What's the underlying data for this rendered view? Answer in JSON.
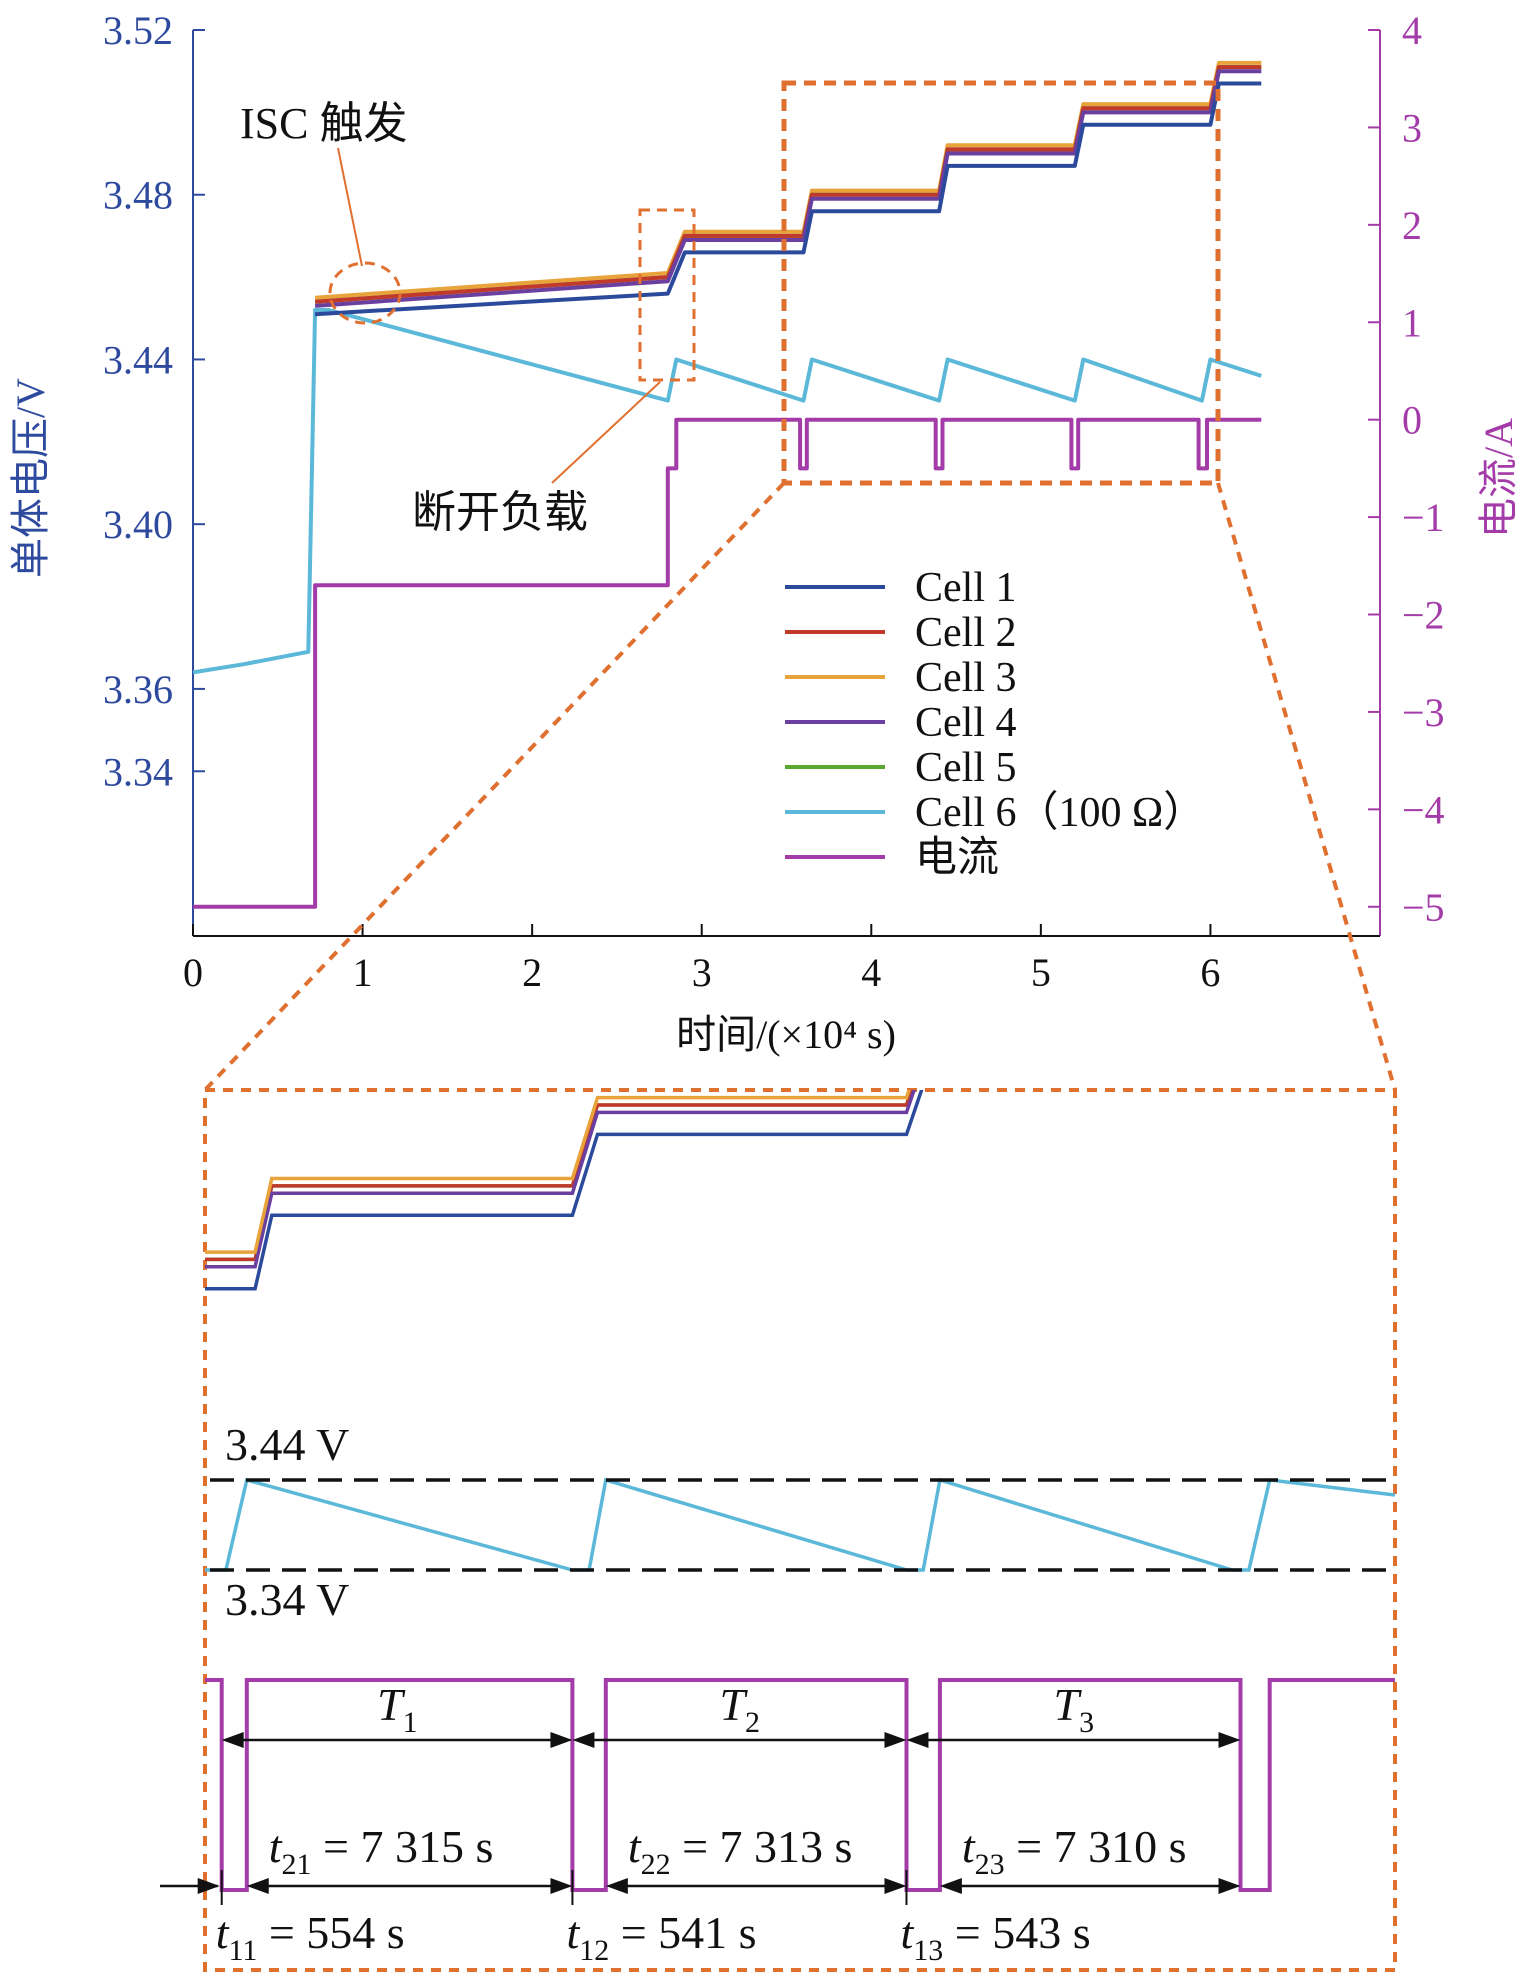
{
  "chart_data": {
    "type": "line",
    "xlabel": "时间/(×10⁴ s)",
    "ylabel_left": "单体电压/V",
    "ylabel_right": "电流/A",
    "xlim": [
      0,
      7
    ],
    "ylim_left": [
      3.3,
      3.52
    ],
    "ylim_right": [
      -5.3,
      4
    ],
    "x_ticks": [
      "0",
      "1",
      "2",
      "3",
      "4",
      "5",
      "6"
    ],
    "y_left_ticks": [
      "3.34",
      "3.36",
      "3.40",
      "3.44",
      "3.48",
      "3.52"
    ],
    "y_right_ticks": [
      "−5",
      "−4",
      "−3",
      "−2",
      "−1",
      "0",
      "1",
      "2",
      "3",
      "4"
    ],
    "legend_position": "center-right",
    "colors": {
      "cell1": "#2c4a9c",
      "cell2": "#c0392b",
      "cell3": "#e8a33a",
      "cell4": "#6b3fa0",
      "cell5": "#5aa832",
      "cell6": "#5bb8d8",
      "current": "#a33ba8",
      "highlight": "#e07030"
    },
    "series": [
      {
        "name": "Cell 1",
        "axis": "left",
        "color": "#2c4a9c",
        "x": [
          0.72,
          2.8,
          2.9,
          3.6,
          3.65,
          4.4,
          4.45,
          5.2,
          5.25,
          6.0,
          6.05,
          6.3
        ],
        "y": [
          3.451,
          3.456,
          3.466,
          3.466,
          3.476,
          3.476,
          3.487,
          3.487,
          3.497,
          3.497,
          3.507,
          3.507
        ]
      },
      {
        "name": "Cell 2",
        "axis": "left",
        "color": "#c0392b",
        "x": [
          0.72,
          2.8,
          2.9,
          3.6,
          3.65,
          4.4,
          4.45,
          5.2,
          5.25,
          6.0,
          6.05,
          6.3
        ],
        "y": [
          3.454,
          3.46,
          3.47,
          3.47,
          3.48,
          3.48,
          3.491,
          3.491,
          3.501,
          3.501,
          3.511,
          3.511
        ]
      },
      {
        "name": "Cell 3",
        "axis": "left",
        "color": "#e8a33a",
        "x": [
          0.72,
          2.8,
          2.9,
          3.6,
          3.65,
          4.4,
          4.45,
          5.2,
          5.25,
          6.0,
          6.05,
          6.3
        ],
        "y": [
          3.455,
          3.461,
          3.471,
          3.471,
          3.481,
          3.481,
          3.492,
          3.492,
          3.502,
          3.502,
          3.512,
          3.512
        ]
      },
      {
        "name": "Cell 4",
        "axis": "left",
        "color": "#6b3fa0",
        "x": [
          0.72,
          2.8,
          2.9,
          3.6,
          3.65,
          4.4,
          4.45,
          5.2,
          5.25,
          6.0,
          6.05,
          6.3
        ],
        "y": [
          3.453,
          3.459,
          3.469,
          3.469,
          3.479,
          3.479,
          3.49,
          3.49,
          3.5,
          3.5,
          3.51,
          3.51
        ]
      },
      {
        "name": "Cell 5",
        "axis": "left",
        "color": "#5aa832",
        "x": [
          0.72,
          2.8,
          2.9,
          3.6,
          3.65,
          4.4,
          4.45,
          5.2,
          5.25,
          6.0,
          6.05,
          6.3
        ],
        "y": [
          3.454,
          3.46,
          3.47,
          3.47,
          3.48,
          3.48,
          3.491,
          3.491,
          3.501,
          3.501,
          3.511,
          3.511
        ]
      },
      {
        "name": "Cell 6（100 Ω）",
        "axis": "left",
        "color": "#5bb8d8",
        "x": [
          0,
          0.3,
          0.68,
          0.72,
          0.8,
          2.8,
          2.85,
          3.6,
          3.65,
          4.4,
          4.45,
          5.2,
          5.25,
          5.95,
          6.0,
          6.3
        ],
        "y": [
          3.364,
          3.366,
          3.369,
          3.452,
          3.452,
          3.43,
          3.44,
          3.43,
          3.44,
          3.43,
          3.44,
          3.43,
          3.44,
          3.43,
          3.44,
          3.436
        ]
      },
      {
        "name": "电流",
        "axis": "right",
        "color": "#a33ba8",
        "x": [
          0,
          0.72,
          0.72,
          2.8,
          2.8,
          2.85,
          2.85,
          3.58,
          3.58,
          3.62,
          3.62,
          4.38,
          4.38,
          4.42,
          4.42,
          5.18,
          5.18,
          5.22,
          5.22,
          5.93,
          5.93,
          5.98,
          5.98,
          6.3
        ],
        "y": [
          -5,
          -5,
          -1.7,
          -1.7,
          -0.5,
          -0.5,
          0,
          0,
          -0.5,
          -0.5,
          0,
          0,
          -0.5,
          -0.5,
          0,
          0,
          -0.5,
          -0.5,
          0,
          0,
          -0.5,
          -0.5,
          0,
          0
        ]
      }
    ],
    "annotations": {
      "isc_trigger": "ISC 触发",
      "disconnect_load": "断开负载"
    },
    "zoom_panel": {
      "upper_level": "3.44 V",
      "lower_level": "3.34 V",
      "periods": [
        {
          "label": "T",
          "sub": "1"
        },
        {
          "label": "T",
          "sub": "2"
        },
        {
          "label": "T",
          "sub": "3"
        }
      ],
      "charge_times": [
        {
          "label": "t",
          "sub": "21",
          "value": " = 7 315 s"
        },
        {
          "label": "t",
          "sub": "22",
          "value": " = 7 313 s"
        },
        {
          "label": "t",
          "sub": "23",
          "value": " = 7 310 s"
        }
      ],
      "discharge_times": [
        {
          "label": "t",
          "sub": "11",
          "value": " = 554 s"
        },
        {
          "label": "t",
          "sub": "12",
          "value": " = 541 s"
        },
        {
          "label": "t",
          "sub": "13",
          "value": " = 543 s"
        }
      ]
    }
  }
}
